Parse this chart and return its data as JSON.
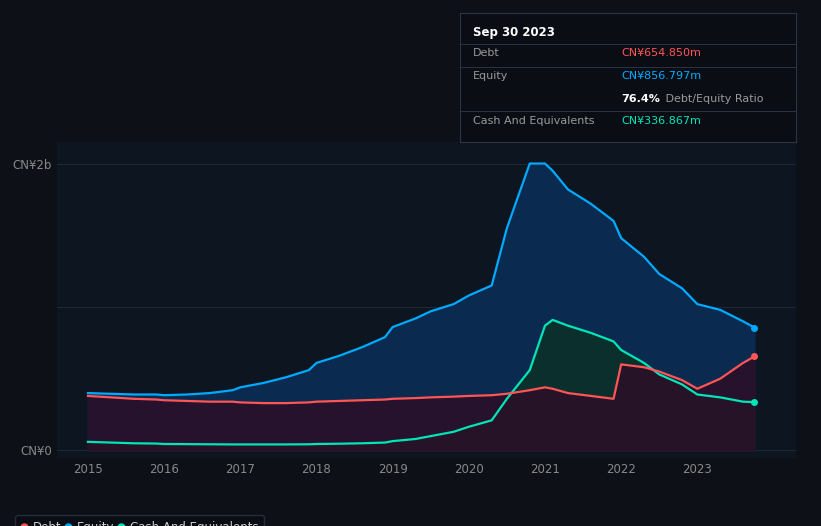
{
  "bg_color": "#0d1117",
  "plot_bg_color": "#0d1520",
  "ylabel_top": "CN¥2b",
  "ylabel_bottom": "CN¥0",
  "xlim_start": 2014.6,
  "xlim_end": 2024.3,
  "ylim_min": -0.05,
  "ylim_max": 2.15,
  "grid_color": "#1e2a3a",
  "years": [
    2015.0,
    2015.3,
    2015.6,
    2015.9,
    2016.0,
    2016.3,
    2016.6,
    2016.9,
    2017.0,
    2017.3,
    2017.6,
    2017.9,
    2018.0,
    2018.3,
    2018.6,
    2018.9,
    2019.0,
    2019.3,
    2019.5,
    2019.8,
    2020.0,
    2020.3,
    2020.5,
    2020.8,
    2021.0,
    2021.1,
    2021.3,
    2021.6,
    2021.9,
    2022.0,
    2022.3,
    2022.5,
    2022.8,
    2023.0,
    2023.3,
    2023.6,
    2023.75
  ],
  "equity": [
    0.4,
    0.395,
    0.39,
    0.39,
    0.385,
    0.39,
    0.4,
    0.42,
    0.44,
    0.47,
    0.51,
    0.56,
    0.61,
    0.66,
    0.72,
    0.79,
    0.86,
    0.92,
    0.97,
    1.02,
    1.08,
    1.15,
    1.55,
    2.0,
    2.0,
    1.95,
    1.82,
    1.72,
    1.6,
    1.48,
    1.35,
    1.23,
    1.13,
    1.02,
    0.98,
    0.9,
    0.857
  ],
  "debt": [
    0.38,
    0.37,
    0.36,
    0.355,
    0.35,
    0.345,
    0.34,
    0.34,
    0.335,
    0.33,
    0.33,
    0.335,
    0.34,
    0.345,
    0.35,
    0.355,
    0.36,
    0.365,
    0.37,
    0.375,
    0.38,
    0.385,
    0.395,
    0.42,
    0.44,
    0.43,
    0.4,
    0.38,
    0.36,
    0.6,
    0.58,
    0.55,
    0.49,
    0.43,
    0.5,
    0.61,
    0.655
  ],
  "cash": [
    0.06,
    0.055,
    0.05,
    0.048,
    0.045,
    0.044,
    0.043,
    0.042,
    0.042,
    0.042,
    0.042,
    0.043,
    0.045,
    0.047,
    0.05,
    0.055,
    0.065,
    0.08,
    0.1,
    0.13,
    0.165,
    0.21,
    0.36,
    0.56,
    0.87,
    0.91,
    0.87,
    0.82,
    0.76,
    0.7,
    0.61,
    0.53,
    0.46,
    0.39,
    0.37,
    0.34,
    0.337
  ],
  "equity_color": "#00aaff",
  "equity_fill": "#0a2a50",
  "debt_color": "#ff5555",
  "debt_fill": "#2a1028",
  "cash_color": "#00e5b8",
  "cash_fill": "#0a3028",
  "legend_items": [
    {
      "label": "Debt",
      "color": "#ff5555"
    },
    {
      "label": "Equity",
      "color": "#00aaff"
    },
    {
      "label": "Cash And Equivalents",
      "color": "#00e5b8"
    }
  ],
  "xtick_labels": [
    "2015",
    "2016",
    "2017",
    "2018",
    "2019",
    "2020",
    "2021",
    "2022",
    "2023"
  ],
  "xtick_positions": [
    2015,
    2016,
    2017,
    2018,
    2019,
    2020,
    2021,
    2022,
    2023
  ],
  "info_title": "Sep 30 2023",
  "info_debt_label": "Debt",
  "info_debt_value": "CN¥654.850m",
  "info_equity_label": "Equity",
  "info_equity_value": "CN¥856.797m",
  "info_ratio_bold": "76.4%",
  "info_ratio_rest": " Debt/Equity Ratio",
  "info_cash_label": "Cash And Equivalents",
  "info_cash_value": "CN¥336.867m",
  "info_debt_color": "#ff5555",
  "info_equity_color": "#00aaff",
  "info_cash_color": "#00e5b8",
  "info_label_color": "#999999",
  "info_title_color": "#ffffff",
  "info_ratio_color": "#cccccc"
}
